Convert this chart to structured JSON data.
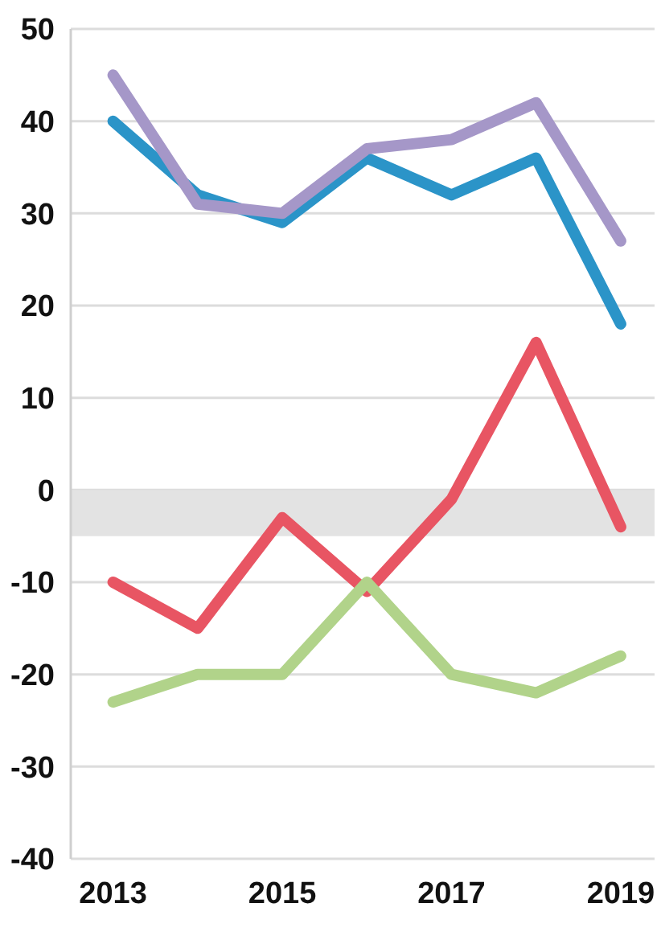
{
  "chart_data": {
    "type": "line",
    "x": [
      2013,
      2014,
      2015,
      2016,
      2017,
      2018,
      2019
    ],
    "series": [
      {
        "color": "#2b94c8",
        "values": [
          40,
          32,
          29,
          36,
          32,
          36,
          18
        ]
      },
      {
        "color": "#a597c8",
        "values": [
          45,
          31,
          30,
          37,
          38,
          42,
          27
        ]
      },
      {
        "color": "#e85563",
        "values": [
          -10,
          -15,
          -3,
          -11,
          -1,
          16,
          -4
        ]
      },
      {
        "color": "#b1d38a",
        "values": [
          -23,
          -20,
          -20,
          -10,
          -20,
          -22,
          -18
        ]
      }
    ],
    "xlim": [
      2012.5,
      2019.4
    ],
    "xticks": [
      2013,
      2015,
      2017,
      2019
    ],
    "ylim": [
      -40,
      50
    ],
    "yticks": [
      -40,
      -30,
      -20,
      -10,
      0,
      10,
      20,
      30,
      40,
      50
    ],
    "bands": [
      {
        "axis": "y",
        "from": -5,
        "to": 0,
        "color": "#e3e3e3"
      }
    ],
    "grid": "y",
    "legend": false,
    "marker": "none",
    "line_style": "solid"
  }
}
